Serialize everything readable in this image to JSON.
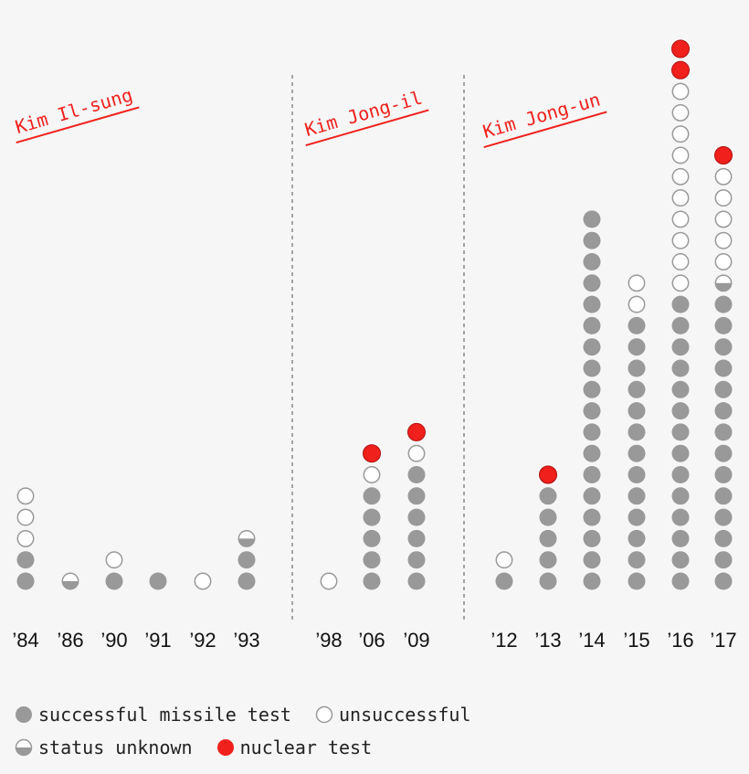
{
  "chart_data": {
    "type": "dot-stack",
    "colors": {
      "success": "#999999",
      "unsuccessful": "#ffffff",
      "unknown": "#999999",
      "nuclear": "#f0201c",
      "outline": "#999999",
      "accent": "#f0201c"
    },
    "eras": [
      {
        "label": "Kim Il-sung"
      },
      {
        "label": "Kim Jong-il"
      },
      {
        "label": "Kim Jong-un"
      }
    ],
    "categories": [
      "’84",
      "’86",
      "’90",
      "’91",
      "’92",
      "’93",
      "’98",
      "’06",
      "’09",
      "’12",
      "’13",
      "’14",
      "’15",
      "’16",
      "’17"
    ],
    "era_of_category": [
      0,
      0,
      0,
      0,
      0,
      0,
      1,
      1,
      1,
      2,
      2,
      2,
      2,
      2,
      2
    ],
    "series": [
      {
        "name": "successful missile test",
        "values": [
          2,
          0,
          1,
          1,
          0,
          2,
          0,
          5,
          6,
          1,
          5,
          18,
          13,
          14,
          14
        ]
      },
      {
        "name": "status unknown",
        "values": [
          0,
          1,
          0,
          0,
          0,
          1,
          0,
          0,
          0,
          0,
          0,
          0,
          0,
          0,
          1
        ]
      },
      {
        "name": "unsuccessful",
        "values": [
          3,
          0,
          1,
          0,
          1,
          0,
          1,
          1,
          1,
          1,
          0,
          0,
          2,
          10,
          5
        ]
      },
      {
        "name": "nuclear test",
        "values": [
          0,
          0,
          0,
          0,
          0,
          0,
          0,
          1,
          1,
          0,
          1,
          0,
          0,
          2,
          1
        ]
      }
    ]
  },
  "legend": [
    {
      "key": "success",
      "label": "successful missile test"
    },
    {
      "key": "unsuccessful",
      "label": "unsuccessful"
    },
    {
      "key": "unknown",
      "label": "status unknown"
    },
    {
      "key": "nuclear",
      "label": "nuclear test"
    }
  ]
}
